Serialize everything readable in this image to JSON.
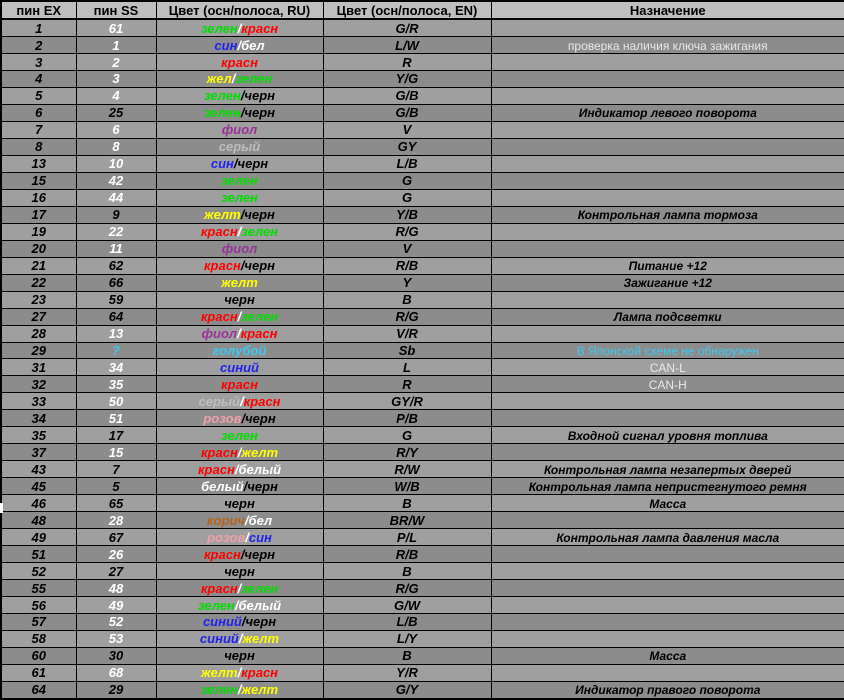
{
  "table": {
    "headers": [
      "пин EX",
      "пин SS",
      "Цвет (осн/полоса, RU)",
      "Цвет (осн/полоса, EN)",
      "Назначение"
    ],
    "palette": {
      "green": "#00dd00",
      "red": "#ff0000",
      "blue": "#2222ee",
      "yellow": "#ffff00",
      "white": "#ffffff",
      "black": "#000000",
      "purple": "#993399",
      "gray": "#bdbdbd",
      "cyan": "#3fc8f0",
      "pink": "#f0a0a8",
      "brown": "#b5641e"
    },
    "ss_text_colors": {
      "white": "#ffffff",
      "black": "#000000",
      "cyan": "#3fc8f0"
    },
    "rows": [
      {
        "ex": "1",
        "ss": "61",
        "ss_color": "white",
        "ru": [
          [
            "зелен",
            "green"
          ],
          [
            "/",
            "white"
          ],
          [
            "красн",
            "red"
          ]
        ],
        "en": "G/R",
        "purpose": "",
        "purpose_style": "dark"
      },
      {
        "ex": "2",
        "ss": "1",
        "ss_color": "white",
        "ru": [
          [
            "син",
            "blue"
          ],
          [
            "/",
            "white"
          ],
          [
            "бел",
            "white"
          ]
        ],
        "en": "L/W",
        "purpose": "проверка наличия ключа зажигания",
        "purpose_style": "light"
      },
      {
        "ex": "3",
        "ss": "2",
        "ss_color": "white",
        "ru": [
          [
            "красн",
            "red"
          ]
        ],
        "en": "R",
        "purpose": "",
        "purpose_style": "dark"
      },
      {
        "ex": "4",
        "ss": "3",
        "ss_color": "white",
        "ru": [
          [
            "жел",
            "yellow"
          ],
          [
            "/",
            "white"
          ],
          [
            "зелен",
            "green"
          ]
        ],
        "en": "Y/G",
        "purpose": "",
        "purpose_style": "dark"
      },
      {
        "ex": "5",
        "ss": "4",
        "ss_color": "white",
        "ru": [
          [
            "зелен",
            "green"
          ],
          [
            "/черн",
            "black"
          ]
        ],
        "en": "G/B",
        "purpose": "",
        "purpose_style": "dark"
      },
      {
        "ex": "6",
        "ss": "25",
        "ss_color": "black",
        "ru": [
          [
            "зелен",
            "green"
          ],
          [
            "/черн",
            "black"
          ]
        ],
        "en": "G/B",
        "purpose": "Индикатор левого поворота",
        "purpose_style": "dark"
      },
      {
        "ex": "7",
        "ss": "6",
        "ss_color": "white",
        "ru": [
          [
            "фиол",
            "purple"
          ]
        ],
        "en": "V",
        "purpose": "",
        "purpose_style": "dark"
      },
      {
        "ex": "8",
        "ss": "8",
        "ss_color": "white",
        "ru": [
          [
            "серый",
            "gray"
          ]
        ],
        "en": "GY",
        "purpose": "",
        "purpose_style": "dark"
      },
      {
        "ex": "13",
        "ss": "10",
        "ss_color": "white",
        "ru": [
          [
            "син",
            "blue"
          ],
          [
            "/черн",
            "black"
          ]
        ],
        "en": "L/B",
        "purpose": "",
        "purpose_style": "dark"
      },
      {
        "ex": "15",
        "ss": "42",
        "ss_color": "white",
        "ru": [
          [
            "зелен",
            "green"
          ]
        ],
        "en": "G",
        "purpose": "",
        "purpose_style": "dark"
      },
      {
        "ex": "16",
        "ss": "44",
        "ss_color": "white",
        "ru": [
          [
            "зелен",
            "green"
          ]
        ],
        "en": "G",
        "purpose": "",
        "purpose_style": "dark"
      },
      {
        "ex": "17",
        "ss": "9",
        "ss_color": "black",
        "ru": [
          [
            "желт",
            "yellow"
          ],
          [
            "/черн",
            "black"
          ]
        ],
        "en": "Y/B",
        "purpose": "Контрольная лампа тормоза",
        "purpose_style": "dark"
      },
      {
        "ex": "19",
        "ss": "22",
        "ss_color": "white",
        "ru": [
          [
            "красн",
            "red"
          ],
          [
            "/",
            "white"
          ],
          [
            "зелен",
            "green"
          ]
        ],
        "en": "R/G",
        "purpose": "",
        "purpose_style": "dark"
      },
      {
        "ex": "20",
        "ss": "11",
        "ss_color": "white",
        "ru": [
          [
            "фиол",
            "purple"
          ]
        ],
        "en": "V",
        "purpose": "",
        "purpose_style": "dark"
      },
      {
        "ex": "21",
        "ss": "62",
        "ss_color": "black",
        "ru": [
          [
            "красн",
            "red"
          ],
          [
            "/черн",
            "black"
          ]
        ],
        "en": "R/B",
        "purpose": "Питание +12",
        "purpose_style": "dark"
      },
      {
        "ex": "22",
        "ss": "66",
        "ss_color": "black",
        "ru": [
          [
            "желт",
            "yellow"
          ]
        ],
        "en": "Y",
        "purpose": "Зажигание +12",
        "purpose_style": "dark"
      },
      {
        "ex": "23",
        "ss": "59",
        "ss_color": "black",
        "ru": [
          [
            "черн",
            "black"
          ]
        ],
        "en": "B",
        "purpose": "",
        "purpose_style": "dark"
      },
      {
        "ex": "27",
        "ss": "64",
        "ss_color": "black",
        "ru": [
          [
            "красн",
            "red"
          ],
          [
            "/",
            "white"
          ],
          [
            "зелен",
            "green"
          ]
        ],
        "en": "R/G",
        "purpose": "Лампа подсветки",
        "purpose_style": "dark"
      },
      {
        "ex": "28",
        "ss": "13",
        "ss_color": "white",
        "ru": [
          [
            "фиол",
            "purple"
          ],
          [
            "/",
            "white"
          ],
          [
            "красн",
            "red"
          ]
        ],
        "en": "V/R",
        "purpose": "",
        "purpose_style": "dark"
      },
      {
        "ex": "29",
        "ss": "?",
        "ss_color": "cyan",
        "ru": [
          [
            "голубой",
            "cyan"
          ]
        ],
        "en": "Sb",
        "purpose": "В Японской схеме не обнаружен",
        "purpose_style": "cyan"
      },
      {
        "ex": "31",
        "ss": "34",
        "ss_color": "white",
        "ru": [
          [
            "синий",
            "blue"
          ]
        ],
        "en": "L",
        "purpose": "CAN-L",
        "purpose_style": "light"
      },
      {
        "ex": "32",
        "ss": "35",
        "ss_color": "white",
        "ru": [
          [
            "красн",
            "red"
          ]
        ],
        "en": "R",
        "purpose": "CAN-H",
        "purpose_style": "light"
      },
      {
        "ex": "33",
        "ss": "50",
        "ss_color": "white",
        "ru": [
          [
            "серый",
            "gray"
          ],
          [
            "/",
            "white"
          ],
          [
            "красн",
            "red"
          ]
        ],
        "en": "GY/R",
        "purpose": "",
        "purpose_style": "dark"
      },
      {
        "ex": "34",
        "ss": "51",
        "ss_color": "white",
        "ru": [
          [
            "розов",
            "pink"
          ],
          [
            "/черн",
            "black"
          ]
        ],
        "en": "P/B",
        "purpose": "",
        "purpose_style": "dark"
      },
      {
        "ex": "35",
        "ss": "17",
        "ss_color": "black",
        "ru": [
          [
            "зелен",
            "green"
          ]
        ],
        "en": "G",
        "purpose": "Входной сигнал уровня топлива",
        "purpose_style": "dark"
      },
      {
        "ex": "37",
        "ss": "15",
        "ss_color": "white",
        "ru": [
          [
            "красн",
            "red"
          ],
          [
            "/",
            "white"
          ],
          [
            "желт",
            "yellow"
          ]
        ],
        "en": "R/Y",
        "purpose": "",
        "purpose_style": "dark"
      },
      {
        "ex": "43",
        "ss": "7",
        "ss_color": "black",
        "ru": [
          [
            "красн",
            "red"
          ],
          [
            "/",
            "white"
          ],
          [
            "белый",
            "white"
          ]
        ],
        "en": "R/W",
        "purpose": "Контрольная лампа незапертых дверей",
        "purpose_style": "dark"
      },
      {
        "ex": "45",
        "ss": "5",
        "ss_color": "black",
        "ru": [
          [
            "белый",
            "white"
          ],
          [
            "/черн",
            "black"
          ]
        ],
        "en": "W/B",
        "purpose": "Контрольная лампа непристегнутого ремня",
        "purpose_style": "dark"
      },
      {
        "ex": "46",
        "ss": "65",
        "ss_color": "black",
        "ru": [
          [
            "черн",
            "black"
          ]
        ],
        "en": "B",
        "purpose": "Масса",
        "purpose_style": "dark"
      },
      {
        "ex": "48",
        "ss": "28",
        "ss_color": "white",
        "ru": [
          [
            "корич",
            "brown"
          ],
          [
            "/",
            "white"
          ],
          [
            "бел",
            "white"
          ]
        ],
        "en": "BR/W",
        "purpose": "",
        "purpose_style": "dark"
      },
      {
        "ex": "49",
        "ss": "67",
        "ss_color": "black",
        "ru": [
          [
            "розов",
            "pink"
          ],
          [
            "/",
            "white"
          ],
          [
            "син",
            "blue"
          ]
        ],
        "en": "P/L",
        "purpose": "Контрольная лампа давления масла",
        "purpose_style": "dark"
      },
      {
        "ex": "51",
        "ss": "26",
        "ss_color": "white",
        "ru": [
          [
            "красн",
            "red"
          ],
          [
            "/черн",
            "black"
          ]
        ],
        "en": "R/B",
        "purpose": "",
        "purpose_style": "dark"
      },
      {
        "ex": "52",
        "ss": "27",
        "ss_color": "black",
        "ru": [
          [
            "черн",
            "black"
          ]
        ],
        "en": "B",
        "purpose": "",
        "purpose_style": "dark"
      },
      {
        "ex": "55",
        "ss": "48",
        "ss_color": "white",
        "ru": [
          [
            "красн",
            "red"
          ],
          [
            "/",
            "white"
          ],
          [
            "зелен",
            "green"
          ]
        ],
        "en": "R/G",
        "purpose": "",
        "purpose_style": "dark"
      },
      {
        "ex": "56",
        "ss": "49",
        "ss_color": "white",
        "ru": [
          [
            "зелен",
            "green"
          ],
          [
            "/",
            "white"
          ],
          [
            "белый",
            "white"
          ]
        ],
        "en": "G/W",
        "purpose": "",
        "purpose_style": "dark"
      },
      {
        "ex": "57",
        "ss": "52",
        "ss_color": "white",
        "ru": [
          [
            "синий",
            "blue"
          ],
          [
            "/черн",
            "black"
          ]
        ],
        "en": "L/B",
        "purpose": "",
        "purpose_style": "dark"
      },
      {
        "ex": "58",
        "ss": "53",
        "ss_color": "white",
        "ru": [
          [
            "синий",
            "blue"
          ],
          [
            "/",
            "white"
          ],
          [
            "желт",
            "yellow"
          ]
        ],
        "en": "L/Y",
        "purpose": "",
        "purpose_style": "dark"
      },
      {
        "ex": "60",
        "ss": "30",
        "ss_color": "black",
        "ru": [
          [
            "черн",
            "black"
          ]
        ],
        "en": "B",
        "purpose": "Масса",
        "purpose_style": "dark"
      },
      {
        "ex": "61",
        "ss": "68",
        "ss_color": "white",
        "ru": [
          [
            "желт",
            "yellow"
          ],
          [
            "/",
            "white"
          ],
          [
            "красн",
            "red"
          ]
        ],
        "en": "Y/R",
        "purpose": "",
        "purpose_style": "dark"
      },
      {
        "ex": "64",
        "ss": "29",
        "ss_color": "black",
        "ru": [
          [
            "зелен",
            "green"
          ],
          [
            "/",
            "white"
          ],
          [
            "желт",
            "yellow"
          ]
        ],
        "en": "G/Y",
        "purpose": "Индикатор правого поворота",
        "purpose_style": "dark"
      }
    ]
  }
}
